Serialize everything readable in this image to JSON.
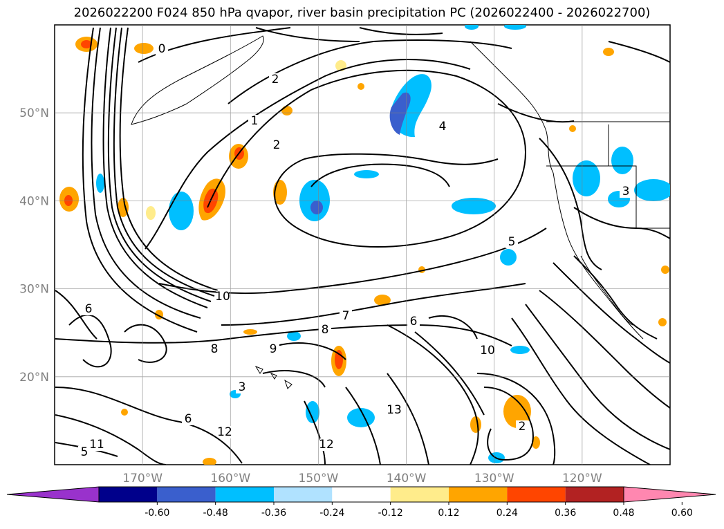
{
  "title": "2026022200 F024 850 hPa qvapor, river basin precipitation PC (2026022400 - 2026022700)",
  "map": {
    "projection": "plate-carree",
    "lon_range": [
      -180,
      -110
    ],
    "lat_range": [
      10,
      60
    ],
    "lat_ticks": [
      {
        "value": 20,
        "label": "20°N"
      },
      {
        "value": 30,
        "label": "30°N"
      },
      {
        "value": 40,
        "label": "40°N"
      },
      {
        "value": 50,
        "label": "50°N"
      }
    ],
    "lon_ticks": [
      {
        "value": -170,
        "label": "170°W"
      },
      {
        "value": -160,
        "label": "160°W"
      },
      {
        "value": -150,
        "label": "150°W"
      },
      {
        "value": -140,
        "label": "140°W"
      },
      {
        "value": -130,
        "label": "130°W"
      },
      {
        "value": -120,
        "label": "120°W"
      }
    ],
    "grid": true,
    "contour_color": "#000000",
    "land_outline_color": "#000000"
  },
  "colorbar": {
    "levels": [
      "-0.60",
      "-0.48",
      "-0.36",
      "-0.24",
      "-0.12",
      "0.12",
      "0.24",
      "0.36",
      "0.48",
      "0.60"
    ],
    "colors": [
      "#9932cc",
      "#00008b",
      "#3a5fcd",
      "#00bfff",
      "#b0e2ff",
      "#ffffff",
      "#ffec8b",
      "#ffa500",
      "#ff4500",
      "#b22222",
      "#ff87b0"
    ],
    "extend": "both"
  },
  "contour_labels": [
    "0",
    "1",
    "2",
    "2",
    "3",
    "4",
    "5",
    "6",
    "7",
    "8",
    "9",
    "10",
    "11",
    "12",
    "13",
    "2",
    "3",
    "6",
    "8",
    "10",
    "12",
    "5",
    "6"
  ],
  "chart_data": {
    "type": "map",
    "title": "2026022200 F024 850 hPa qvapor, river basin precipitation PC (2026022400 - 2026022700)",
    "fields": [
      {
        "name": "850 hPa qvapor",
        "style": "contour lines",
        "contour_levels_visible": [
          0,
          1,
          2,
          3,
          4,
          5,
          6,
          7,
          8,
          9,
          10,
          11,
          12,
          13
        ]
      },
      {
        "name": "river basin precipitation PC",
        "style": "filled contours",
        "levels": [
          -0.6,
          -0.48,
          -0.36,
          -0.24,
          -0.12,
          0.12,
          0.24,
          0.36,
          0.48,
          0.6
        ]
      }
    ],
    "xlim": [
      -180,
      -110
    ],
    "ylim": [
      10,
      60
    ]
  }
}
